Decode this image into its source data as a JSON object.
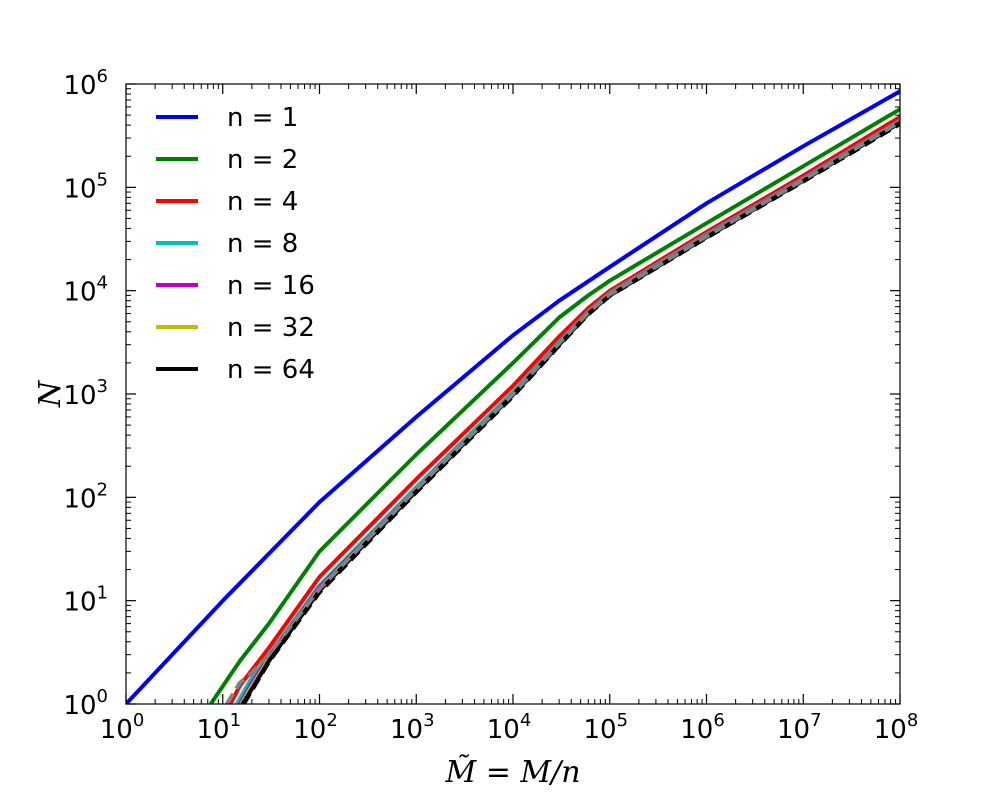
{
  "chart_data": {
    "type": "line",
    "xlabel": "M̃ = M/n",
    "ylabel": "N",
    "xscale": "log",
    "yscale": "log",
    "xlim": [
      1,
      100000000
    ],
    "ylim": [
      1,
      1000000
    ],
    "grid": false,
    "legend": "top-left",
    "x_ticks": [
      {
        "value": 1,
        "base": "10",
        "exp": "0"
      },
      {
        "value": 10,
        "base": "10",
        "exp": "1"
      },
      {
        "value": 100,
        "base": "10",
        "exp": "2"
      },
      {
        "value": 1000,
        "base": "10",
        "exp": "3"
      },
      {
        "value": 10000,
        "base": "10",
        "exp": "4"
      },
      {
        "value": 100000,
        "base": "10",
        "exp": "5"
      },
      {
        "value": 1000000,
        "base": "10",
        "exp": "6"
      },
      {
        "value": 10000000,
        "base": "10",
        "exp": "7"
      },
      {
        "value": 100000000,
        "base": "10",
        "exp": "8"
      }
    ],
    "y_ticks": [
      {
        "value": 1,
        "base": "10",
        "exp": "0"
      },
      {
        "value": 10,
        "base": "10",
        "exp": "1"
      },
      {
        "value": 100,
        "base": "10",
        "exp": "2"
      },
      {
        "value": 1000,
        "base": "10",
        "exp": "3"
      },
      {
        "value": 10000,
        "base": "10",
        "exp": "4"
      },
      {
        "value": 100000,
        "base": "10",
        "exp": "5"
      },
      {
        "value": 1000000,
        "base": "10",
        "exp": "6"
      }
    ],
    "series": [
      {
        "name": "n = 1",
        "color": "#0000ff",
        "x": [
          1,
          10,
          100,
          1000,
          10000,
          30000,
          100000,
          1000000,
          10000000,
          100000000
        ],
        "y": [
          1,
          10,
          90,
          600,
          3700,
          8000,
          17000,
          70000,
          250000,
          850000
        ]
      },
      {
        "name": "n = 2",
        "color": "#008000",
        "x": [
          7.5,
          15,
          30,
          100,
          1000,
          10000,
          30000,
          60000,
          100000,
          1000000,
          10000000,
          100000000
        ],
        "y": [
          1,
          2.6,
          6,
          30,
          260,
          2000,
          5500,
          9000,
          12500,
          45000,
          160000,
          570000
        ]
      },
      {
        "name": "n = 4",
        "color": "#ff0000",
        "x": [
          12,
          15,
          30,
          100,
          1000,
          10000,
          30000,
          60000,
          100000,
          1000000,
          10000000,
          100000000
        ],
        "y": [
          1,
          1.5,
          3.5,
          17,
          150,
          1200,
          3600,
          6800,
          10000,
          37000,
          130000,
          480000
        ]
      },
      {
        "name": "n = 8",
        "color": "#00bfbf",
        "x": [
          14,
          20,
          30,
          100,
          1000,
          10000,
          30000,
          60000,
          100000,
          1000000,
          10000000,
          100000000
        ],
        "y": [
          1,
          1.8,
          3,
          14,
          125,
          1050,
          3200,
          6300,
          9500,
          35000,
          122000,
          440000
        ]
      },
      {
        "name": "n = 16",
        "color": "#bf00bf",
        "x": [
          15,
          20,
          30,
          100,
          1000,
          10000,
          30000,
          60000,
          100000,
          1000000,
          10000000,
          100000000
        ],
        "y": [
          1,
          1.6,
          2.8,
          13.5,
          120,
          1000,
          3100,
          6200,
          9300,
          34000,
          120000,
          430000
        ]
      },
      {
        "name": "n = 32",
        "color": "#bfbf00",
        "x": [
          15.5,
          20,
          30,
          100,
          1000,
          10000,
          30000,
          60000,
          100000,
          1000000,
          10000000,
          100000000
        ],
        "y": [
          1,
          1.5,
          2.7,
          13,
          118,
          990,
          3050,
          6100,
          9200,
          33500,
          118000,
          425000
        ]
      },
      {
        "name": "n = 64",
        "color": "#000000",
        "x": [
          16,
          20,
          30,
          100,
          1000,
          10000,
          30000,
          60000,
          100000,
          1000000,
          10000000,
          100000000
        ],
        "y": [
          1,
          1.4,
          2.6,
          12.5,
          115,
          980,
          3000,
          6000,
          9000,
          33000,
          116000,
          420000
        ]
      }
    ],
    "overlays": [
      {
        "color": "#000000",
        "dash": true,
        "x": [
          16.5,
          20,
          30,
          100,
          1000,
          10000,
          30000,
          60000,
          100000,
          1000000,
          10000000,
          100000000
        ],
        "y": [
          1,
          1.35,
          2.55,
          12,
          112,
          950,
          2950,
          5900,
          8900,
          32500,
          114000,
          410000
        ]
      },
      {
        "color": "#808080",
        "dash": true,
        "x": [
          11,
          15,
          20,
          30,
          100,
          1000,
          10000,
          30000,
          60000,
          100000,
          1000000,
          10000000,
          100000000
        ],
        "y": [
          1,
          1.6,
          2,
          3,
          13,
          120,
          1000,
          3100,
          6150,
          9200,
          33500,
          118000,
          430000
        ]
      }
    ]
  }
}
